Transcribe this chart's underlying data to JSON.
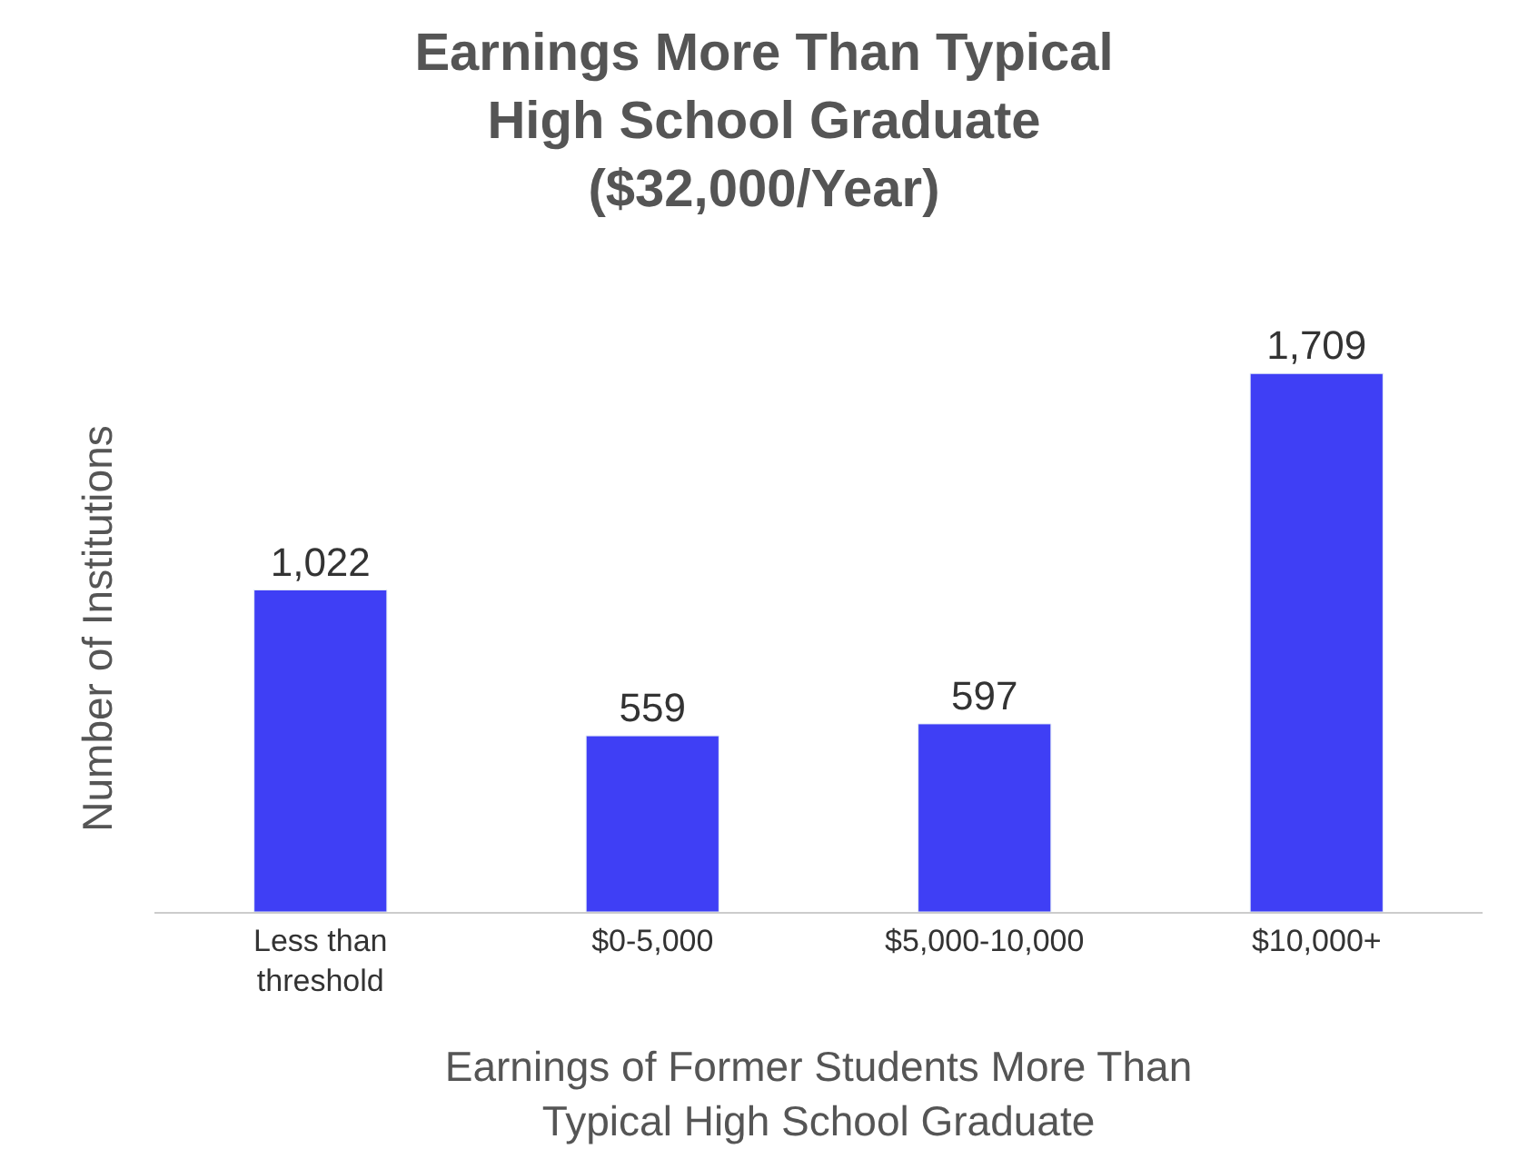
{
  "chart_data": {
    "type": "bar",
    "title": "Earnings More Than Typical High School Graduate ($32,000/Year)",
    "xlabel": "Earnings of Former Students More Than Typical High School Graduate",
    "ylabel": "Number of Institutions",
    "categories": [
      "Less than threshold",
      "$0-5,000",
      "$5,000-10,000",
      "$10,000+"
    ],
    "series": [
      {
        "color": "#3f3ff5",
        "values": [
          1022,
          559,
          597,
          1709
        ],
        "value_labels": [
          "1,022",
          "559",
          "597",
          "1,709"
        ]
      }
    ],
    "tick_labels": "x"
  }
}
